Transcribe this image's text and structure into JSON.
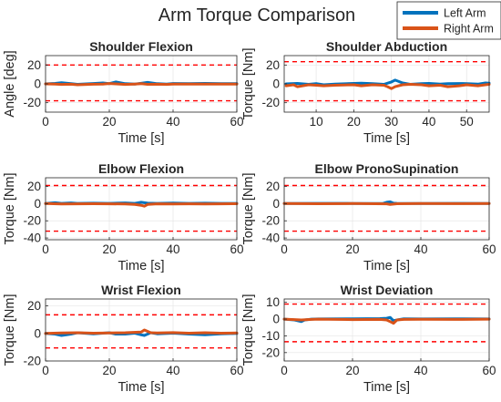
{
  "figure": {
    "title": "Arm Torque Comparison",
    "colors": {
      "left": "#0072BD",
      "right": "#D95319",
      "limit": "#FF0000",
      "grid": "#E6E6E6",
      "axis": "#262626"
    },
    "legend": {
      "placement": "top-right",
      "entries": [
        "Left Arm",
        "Right Arm"
      ]
    }
  },
  "chart_data": [
    {
      "type": "line",
      "title": "Shoulder Flexion",
      "xlabel": "Time [s]",
      "ylabel": "Angle [deg]",
      "xlim": [
        0,
        60
      ],
      "ylim": [
        -30,
        30
      ],
      "xticks": [
        0,
        20,
        40,
        60
      ],
      "yticks": [
        -20,
        0,
        20
      ],
      "grid": true,
      "limits": [
        20,
        -18
      ],
      "series": [
        {
          "name": "Left Arm",
          "x": [
            0,
            3,
            5,
            8,
            10,
            15,
            18,
            20,
            22,
            25,
            28,
            30,
            32,
            35,
            38,
            40,
            45,
            50,
            55,
            60
          ],
          "y": [
            0,
            0.5,
            1.2,
            0.3,
            -0.5,
            0.4,
            1.0,
            0.3,
            2.0,
            0.2,
            -0.3,
            0.6,
            1.5,
            0.2,
            -0.3,
            0.4,
            0.2,
            0.5,
            0.3,
            0.2
          ]
        },
        {
          "name": "Right Arm",
          "x": [
            0,
            3,
            5,
            8,
            10,
            15,
            18,
            20,
            22,
            25,
            28,
            30,
            32,
            35,
            38,
            40,
            45,
            50,
            55,
            60
          ],
          "y": [
            0,
            -0.3,
            -0.6,
            -0.4,
            -1.0,
            -0.4,
            -0.2,
            0.4,
            0,
            -0.6,
            -0.2,
            0.2,
            -0.5,
            -0.4,
            -0.6,
            -0.3,
            -0.2,
            -0.3,
            -0.2,
            -0.2
          ]
        }
      ]
    },
    {
      "type": "line",
      "title": "Shoulder Abduction",
      "xlabel": "Time [s]",
      "ylabel": "Torque [Nm]",
      "xlim": [
        1.5,
        56
      ],
      "ylim": [
        -30,
        30
      ],
      "xticks": [
        10,
        20,
        30,
        40,
        50
      ],
      "yticks": [
        -20,
        0,
        20
      ],
      "grid": true,
      "limits": [
        23.5,
        -18
      ],
      "series": [
        {
          "name": "Left Arm",
          "x": [
            2,
            5,
            8,
            10,
            12,
            15,
            20,
            22,
            25,
            28,
            30,
            31,
            33,
            35,
            38,
            40,
            43,
            45,
            48,
            50,
            53,
            55,
            56
          ],
          "y": [
            0,
            0.5,
            -0.5,
            0.3,
            -1.0,
            -0.3,
            0.5,
            0.8,
            0.2,
            -0.5,
            2.0,
            4.0,
            1.0,
            -0.5,
            0.3,
            0.5,
            -0.3,
            0.2,
            0.4,
            0.3,
            -0.3,
            1.0,
            0.8
          ]
        },
        {
          "name": "Right Arm",
          "x": [
            2,
            4,
            5,
            8,
            10,
            12,
            15,
            20,
            22,
            25,
            28,
            29,
            30,
            31,
            33,
            35,
            38,
            40,
            43,
            45,
            48,
            50,
            53,
            55,
            56
          ],
          "y": [
            -2.0,
            -1.0,
            -3.0,
            -1.0,
            -1.5,
            -2.0,
            -1.5,
            -1.0,
            -2.0,
            -1.0,
            -1.5,
            -3.0,
            -5.0,
            -3.0,
            -1.0,
            -0.5,
            -1.0,
            -2.0,
            -1.5,
            -3.0,
            -2.0,
            -1.0,
            -2.0,
            -1.0,
            -0.5
          ]
        }
      ]
    },
    {
      "type": "line",
      "title": "Elbow Flexion",
      "xlabel": "Time [s]",
      "ylabel": "Torque [Nm]",
      "xlim": [
        0,
        60
      ],
      "ylim": [
        -42,
        30
      ],
      "xticks": [
        0,
        20,
        40,
        60
      ],
      "yticks": [
        -40,
        -20,
        0,
        20
      ],
      "grid": true,
      "limits": [
        21,
        -32
      ],
      "series": [
        {
          "name": "Left Arm",
          "x": [
            0,
            3,
            5,
            8,
            10,
            15,
            20,
            25,
            28,
            30,
            32,
            35,
            40,
            45,
            50,
            55,
            60
          ],
          "y": [
            0,
            1.0,
            0.2,
            0.8,
            0.2,
            0.5,
            0.3,
            0.8,
            0.2,
            1.5,
            0.5,
            0.3,
            0.6,
            0.2,
            0.5,
            0.3,
            0.2
          ]
        },
        {
          "name": "Right Arm",
          "x": [
            0,
            5,
            10,
            15,
            20,
            25,
            28,
            30,
            31,
            32,
            35,
            40,
            45,
            50,
            55,
            60
          ],
          "y": [
            0,
            -0.5,
            -0.3,
            -0.2,
            -0.3,
            -0.5,
            -1.0,
            -2.0,
            -3.0,
            -1.0,
            -0.3,
            -0.5,
            -0.3,
            -0.4,
            -0.3,
            -0.2
          ]
        }
      ]
    },
    {
      "type": "line",
      "title": "Elbow PronoSupination",
      "xlabel": "Time [s]",
      "ylabel": "Torque [Nm]",
      "xlim": [
        0,
        60
      ],
      "ylim": [
        -42,
        30
      ],
      "xticks": [
        0,
        20,
        40,
        60
      ],
      "yticks": [
        -40,
        -20,
        0,
        20
      ],
      "grid": true,
      "limits": [
        21,
        -32
      ],
      "series": [
        {
          "name": "Left Arm",
          "x": [
            0,
            10,
            20,
            29,
            30,
            31,
            32,
            33,
            40,
            50,
            60
          ],
          "y": [
            0,
            0.2,
            0.1,
            0.3,
            1.5,
            2.0,
            0.5,
            0.2,
            0.1,
            0.2,
            0.1
          ]
        },
        {
          "name": "Right Arm",
          "x": [
            0,
            10,
            20,
            30,
            31,
            33,
            40,
            50,
            60
          ],
          "y": [
            0,
            -0.2,
            0,
            -0.3,
            -1.0,
            -0.2,
            0,
            -0.1,
            0
          ]
        }
      ]
    },
    {
      "type": "line",
      "title": "Wrist Flexion",
      "xlabel": "Time [s]",
      "ylabel": "Torque [Nm]",
      "xlim": [
        0,
        60
      ],
      "ylim": [
        -20,
        25
      ],
      "xticks": [
        0,
        20,
        40,
        60
      ],
      "yticks": [
        -20,
        0,
        20
      ],
      "grid": true,
      "limits": [
        13.5,
        -10.5
      ],
      "series": [
        {
          "name": "Left Arm",
          "x": [
            0,
            3,
            5,
            8,
            10,
            15,
            20,
            22,
            25,
            28,
            30,
            31,
            33,
            35,
            40,
            45,
            50,
            55,
            60
          ],
          "y": [
            0,
            -0.5,
            -1.5,
            -0.5,
            0.5,
            -0.3,
            0.5,
            -0.5,
            -0.5,
            0.2,
            -1.0,
            -1.5,
            0.5,
            -0.3,
            0.2,
            -0.5,
            -1.0,
            -0.3,
            0
          ]
        },
        {
          "name": "Right Arm",
          "x": [
            0,
            5,
            10,
            15,
            20,
            25,
            30,
            31,
            32,
            33,
            35,
            40,
            45,
            50,
            55,
            60
          ],
          "y": [
            0,
            0.3,
            0.5,
            0.2,
            0.3,
            0.5,
            1.0,
            2.5,
            1.5,
            0.5,
            0.3,
            0.6,
            0.2,
            0.5,
            0.2,
            0.3
          ]
        }
      ]
    },
    {
      "type": "line",
      "title": "Wrist Deviation",
      "xlabel": "Time [s]",
      "ylabel": "Torque [Nm]",
      "xlim": [
        0,
        60
      ],
      "ylim": [
        -25,
        12
      ],
      "xticks": [
        0,
        20,
        40,
        60
      ],
      "yticks": [
        -20,
        -10,
        0,
        10
      ],
      "grid": true,
      "limits": [
        9,
        -13.5
      ],
      "series": [
        {
          "name": "Left Arm",
          "x": [
            0,
            3,
            5,
            6,
            8,
            10,
            20,
            28,
            30,
            31,
            32,
            33,
            35,
            40,
            50,
            60
          ],
          "y": [
            0,
            -0.5,
            -1.5,
            -0.5,
            0,
            0.1,
            0.2,
            0.3,
            0.5,
            1.0,
            -1.0,
            -0.5,
            0.2,
            0.1,
            0.2,
            0.1
          ]
        },
        {
          "name": "Right Arm",
          "x": [
            0,
            3,
            5,
            8,
            10,
            20,
            28,
            30,
            31,
            32,
            33,
            35,
            40,
            50,
            60
          ],
          "y": [
            0,
            -0.3,
            -0.5,
            -0.2,
            0,
            -0.3,
            -0.2,
            -0.5,
            -1.5,
            -2.5,
            -0.5,
            -0.2,
            -0.1,
            -0.2,
            0
          ]
        }
      ]
    }
  ]
}
